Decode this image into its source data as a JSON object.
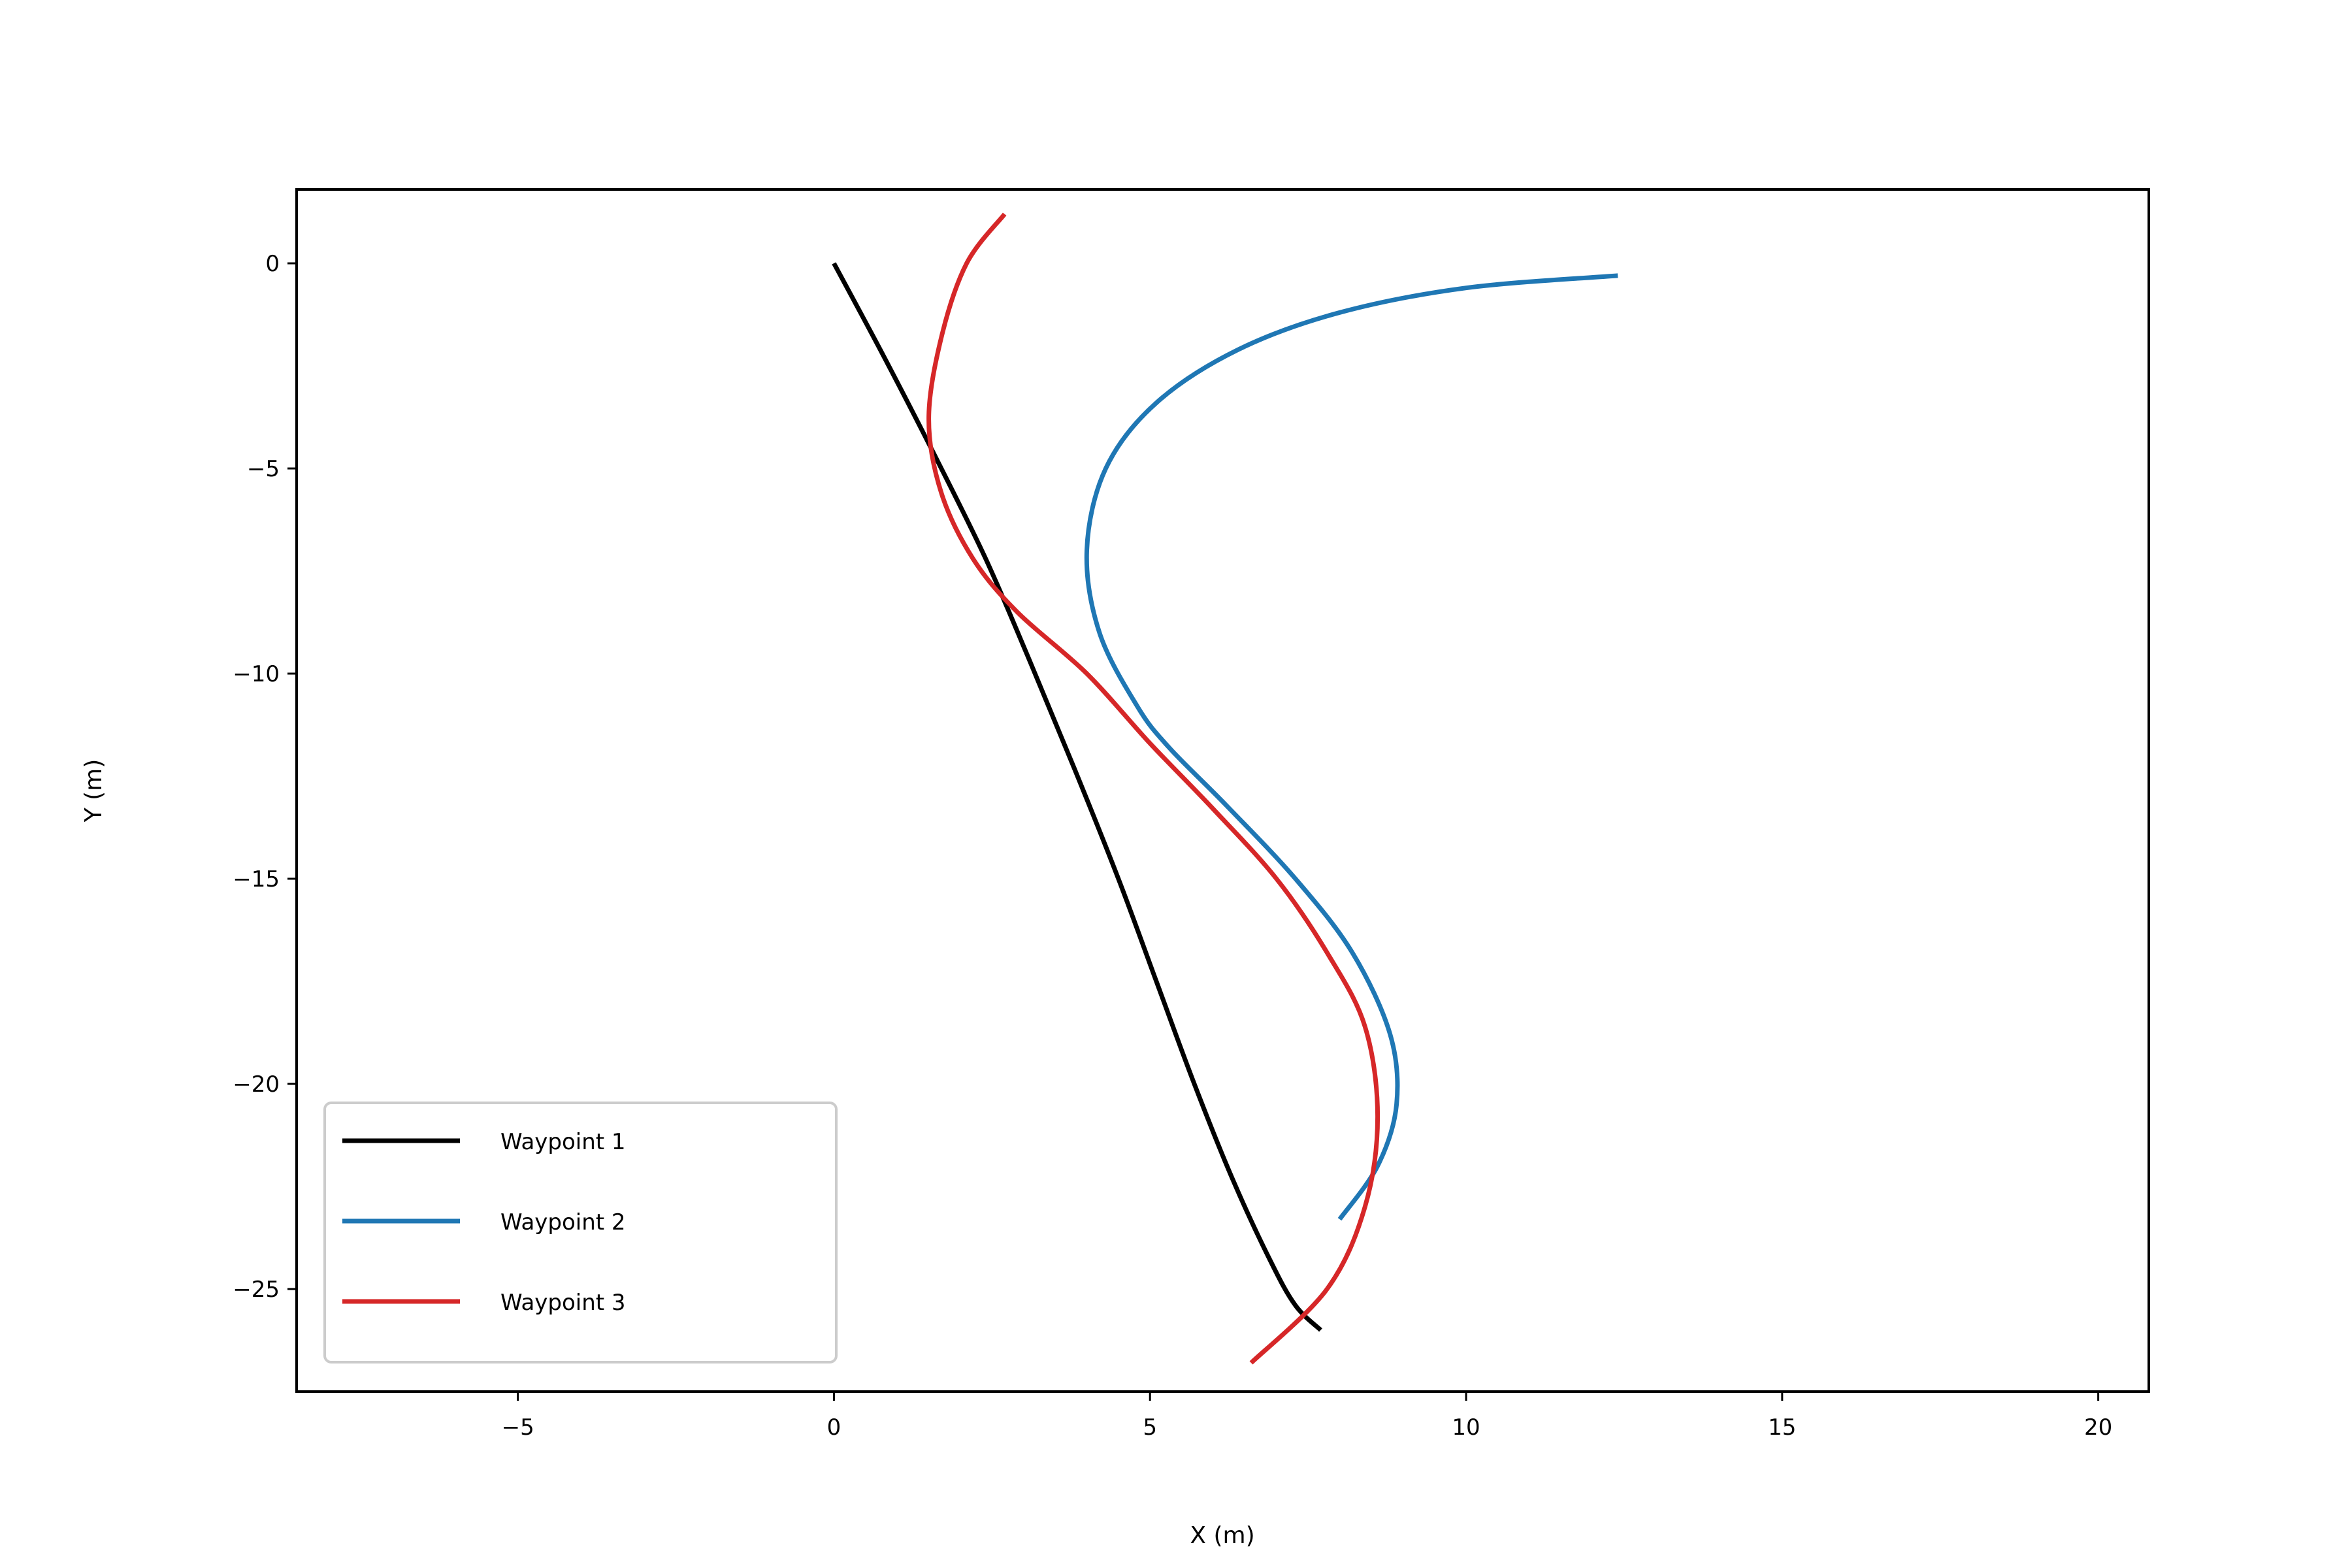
{
  "chart_data": {
    "type": "line",
    "title": "",
    "xlabel": "X (m)",
    "ylabel": "Y (m)",
    "xlim": [
      -8.5,
      20.8
    ],
    "ylim": [
      -27.5,
      1.8
    ],
    "xticks": [
      -5,
      0,
      5,
      10,
      15,
      20
    ],
    "yticks": [
      0,
      -5,
      -10,
      -15,
      -20,
      -25
    ],
    "xtick_labels": [
      "−5",
      "0",
      "5",
      "10",
      "15",
      "20"
    ],
    "ytick_labels": [
      "0",
      "−5",
      "−10",
      "−15",
      "−20",
      "−25"
    ],
    "grid": false,
    "legend_position": "lower-left",
    "series": [
      {
        "name": "Waypoint 1",
        "color": "#000000",
        "x": [
          0.0,
          0.8,
          1.6,
          2.4,
          3.1,
          3.8,
          4.5,
          5.1,
          5.7,
          6.3,
          6.9,
          7.3,
          7.7
        ],
        "y": [
          0.0,
          -2.3,
          -4.7,
          -7.2,
          -9.7,
          -12.3,
          -15.0,
          -17.5,
          -20.0,
          -22.3,
          -24.3,
          -25.4,
          -26.0
        ]
      },
      {
        "name": "Waypoint 2",
        "color": "#1f77b4",
        "x": [
          12.4,
          10.0,
          8.0,
          6.4,
          5.1,
          4.3,
          4.0,
          4.2,
          4.8,
          5.3,
          6.2,
          7.3,
          8.2,
          8.8,
          8.9,
          8.6,
          8.0
        ],
        "y": [
          -0.3,
          -0.6,
          -1.2,
          -2.1,
          -3.4,
          -5.0,
          -7.0,
          -9.0,
          -10.8,
          -11.8,
          -13.2,
          -15.0,
          -16.8,
          -18.8,
          -20.5,
          -22.0,
          -23.3
        ]
      },
      {
        "name": "Waypoint 3",
        "color": "#d62728",
        "x": [
          2.7,
          2.1,
          1.7,
          1.5,
          1.7,
          2.2,
          2.9,
          4.0,
          5.0,
          6.0,
          7.0,
          7.8,
          8.4,
          8.6,
          8.4,
          7.8,
          6.6
        ],
        "y": [
          1.2,
          0.0,
          -1.8,
          -3.8,
          -5.6,
          -7.2,
          -8.5,
          -10.0,
          -11.7,
          -13.3,
          -15.0,
          -16.8,
          -18.6,
          -20.8,
          -23.0,
          -25.0,
          -26.8
        ]
      }
    ]
  }
}
